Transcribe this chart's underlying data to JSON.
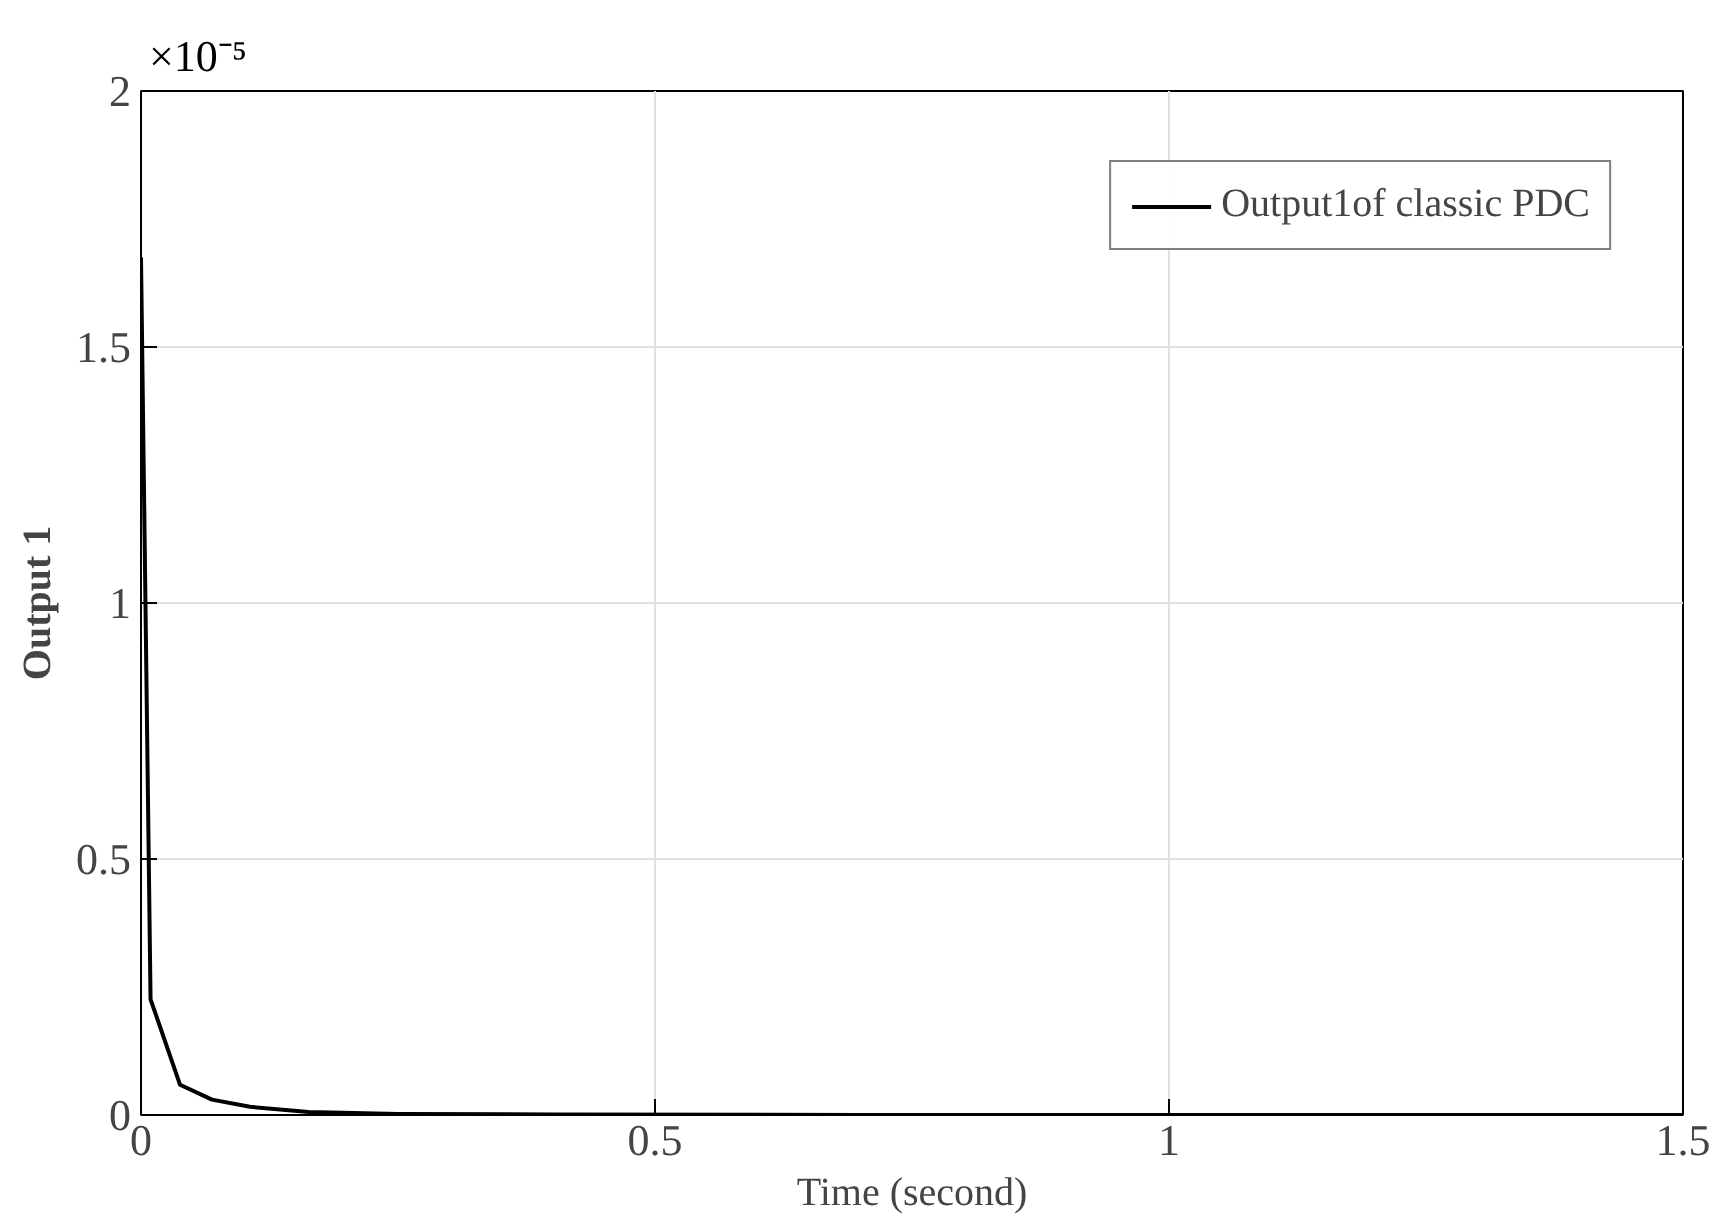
{
  "chart_data": {
    "type": "line",
    "xlabel": "Time (second)",
    "ylabel": "Output 1",
    "annotations": [
      "×10⁻⁵"
    ],
    "x": [
      0,
      0.0093,
      0.038,
      0.069,
      0.106,
      0.163,
      0.25,
      0.4,
      0.7,
      1.0,
      1.5
    ],
    "series": [
      {
        "name": "Output1of classic PDC",
        "color": "#000000",
        "values": [
          1.675,
          0.226,
          0.059,
          0.03,
          0.016,
          0.006,
          0.002,
          0.001,
          0.0,
          0.0,
          0.0
        ]
      }
    ],
    "xlim": [
      0,
      1.5
    ],
    "ylim": [
      0,
      2
    ],
    "xticks": [
      0,
      0.5,
      1,
      1.5
    ],
    "yticks": [
      0,
      0.5,
      1,
      1.5,
      2
    ],
    "grid": true,
    "legend": "top right",
    "line_style": "solid",
    "marker": "none"
  }
}
